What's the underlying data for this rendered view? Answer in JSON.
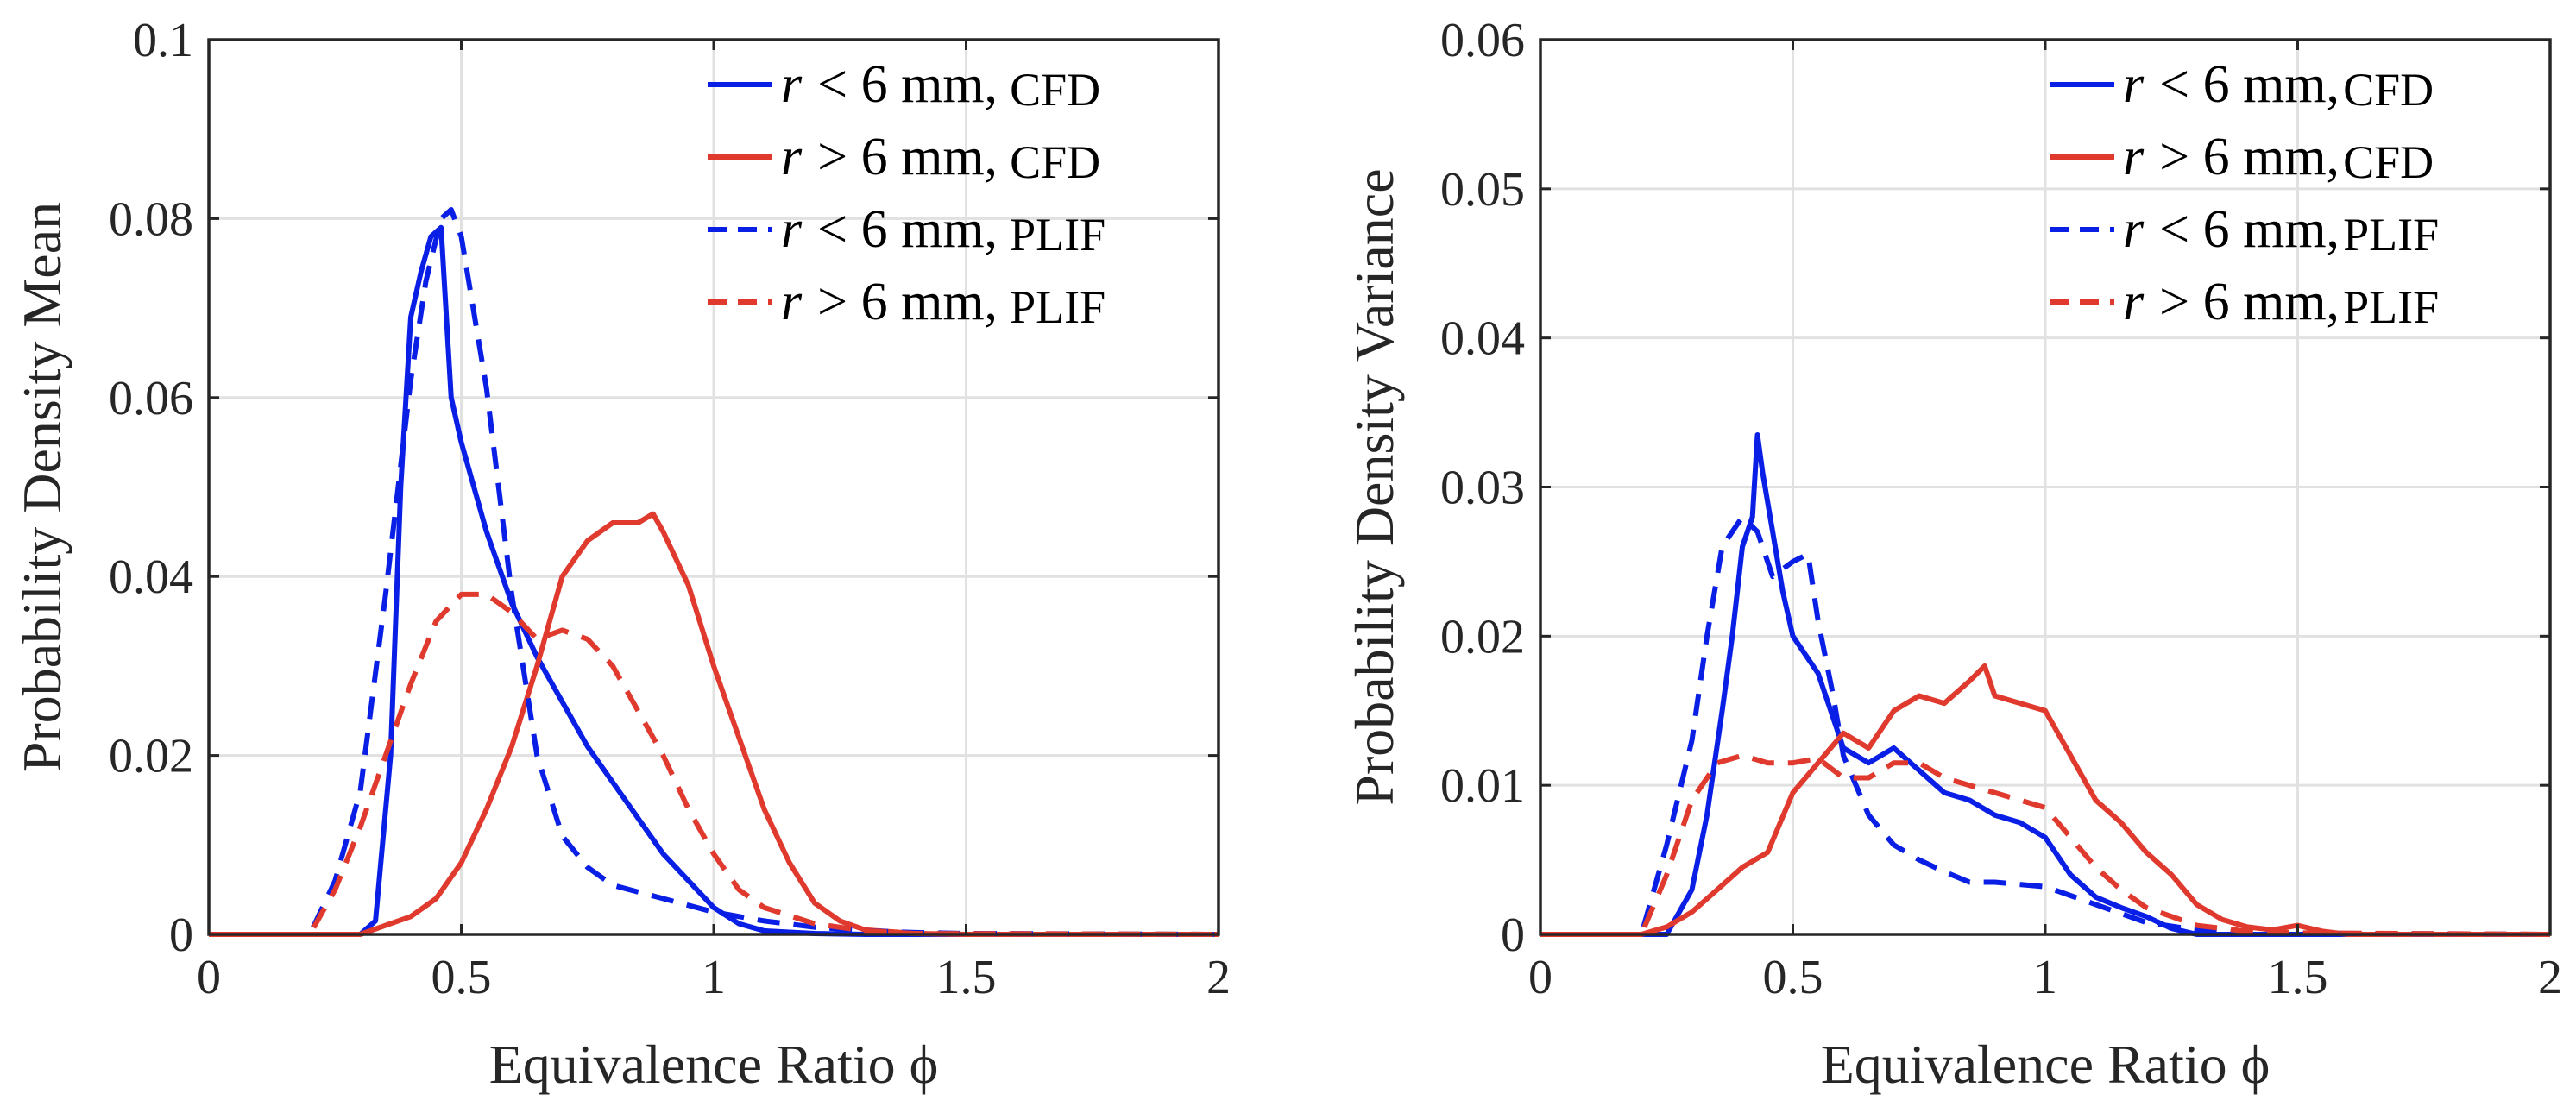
{
  "colors": {
    "blue": "#0a1fe6",
    "red": "#e03a2f"
  },
  "chart_data": [
    {
      "type": "line",
      "xlabel": "Equivalence Ratio ϕ",
      "ylabel": "Probability Density Mean",
      "xlim": [
        0,
        2
      ],
      "ylim": [
        0,
        0.1
      ],
      "xticks": [
        0,
        0.5,
        1,
        1.5,
        2
      ],
      "xtick_labels": [
        "0",
        "0.5",
        "1",
        "1.5",
        "2"
      ],
      "yticks": [
        0,
        0.02,
        0.04,
        0.06,
        0.08,
        0.1
      ],
      "ytick_labels": [
        "0",
        "0.02",
        "0.04",
        "0.06",
        "0.08",
        "0.1"
      ],
      "grid": true,
      "legend_position": "top-right",
      "series": [
        {
          "name": "r < 6 mm, CFD",
          "legend": {
            "var": "r",
            "op": "<",
            "rest": " 6 mm,",
            "source": "CFD"
          },
          "color": "blue",
          "dash": "solid",
          "x": [
            0,
            0.2,
            0.3,
            0.33,
            0.36,
            0.38,
            0.4,
            0.42,
            0.44,
            0.46,
            0.48,
            0.5,
            0.55,
            0.6,
            0.65,
            0.7,
            0.75,
            0.8,
            0.85,
            0.9,
            0.95,
            1.0,
            1.05,
            1.1,
            1.2,
            1.3,
            1.5,
            2.0
          ],
          "y": [
            0,
            0,
            0,
            0.0015,
            0.02,
            0.05,
            0.069,
            0.074,
            0.078,
            0.079,
            0.06,
            0.055,
            0.045,
            0.037,
            0.031,
            0.026,
            0.021,
            0.017,
            0.013,
            0.009,
            0.006,
            0.003,
            0.0012,
            0.0004,
            0.0001,
            0,
            0,
            0
          ]
        },
        {
          "name": "r > 6 mm, CFD",
          "legend": {
            "var": "r",
            "op": ">",
            "rest": " 6 mm,",
            "source": "CFD"
          },
          "color": "red",
          "dash": "solid",
          "x": [
            0,
            0.3,
            0.35,
            0.4,
            0.45,
            0.5,
            0.55,
            0.6,
            0.65,
            0.7,
            0.75,
            0.8,
            0.85,
            0.88,
            0.9,
            0.95,
            1.0,
            1.05,
            1.1,
            1.15,
            1.2,
            1.25,
            1.3,
            1.4,
            1.5,
            2.0
          ],
          "y": [
            0,
            0,
            0.001,
            0.002,
            0.004,
            0.008,
            0.014,
            0.021,
            0.03,
            0.04,
            0.044,
            0.046,
            0.046,
            0.047,
            0.045,
            0.039,
            0.03,
            0.022,
            0.014,
            0.008,
            0.0035,
            0.0015,
            0.0005,
            0.0001,
            0,
            0
          ]
        },
        {
          "name": "r < 6 mm, PLIF",
          "legend": {
            "var": "r",
            "op": "<",
            "rest": " 6 mm,",
            "source": "PLIF"
          },
          "color": "blue",
          "dash": "dashed",
          "x": [
            0,
            0.2,
            0.25,
            0.3,
            0.35,
            0.4,
            0.43,
            0.46,
            0.48,
            0.5,
            0.55,
            0.6,
            0.65,
            0.7,
            0.75,
            0.8,
            0.9,
            1.0,
            1.1,
            1.2,
            1.3,
            1.4,
            1.5,
            2.0
          ],
          "y": [
            0,
            0,
            0.006,
            0.016,
            0.038,
            0.062,
            0.073,
            0.08,
            0.081,
            0.078,
            0.061,
            0.038,
            0.02,
            0.011,
            0.0075,
            0.0055,
            0.004,
            0.0025,
            0.0015,
            0.0008,
            0.0004,
            0.0002,
            0.0001,
            0
          ]
        },
        {
          "name": "r > 6 mm, PLIF",
          "legend": {
            "var": "r",
            "op": ">",
            "rest": " 6 mm,",
            "source": "PLIF"
          },
          "color": "red",
          "dash": "dashed",
          "x": [
            0,
            0.2,
            0.25,
            0.3,
            0.35,
            0.4,
            0.45,
            0.5,
            0.55,
            0.6,
            0.65,
            0.7,
            0.75,
            0.8,
            0.85,
            0.9,
            0.95,
            1.0,
            1.05,
            1.1,
            1.2,
            1.3,
            1.4,
            2.0
          ],
          "y": [
            0,
            0,
            0.005,
            0.012,
            0.02,
            0.028,
            0.035,
            0.038,
            0.038,
            0.036,
            0.033,
            0.034,
            0.033,
            0.03,
            0.025,
            0.02,
            0.014,
            0.009,
            0.005,
            0.003,
            0.0012,
            0.0004,
            0.0001,
            0
          ]
        }
      ]
    },
    {
      "type": "line",
      "xlabel": "Equivalence Ratio ϕ",
      "ylabel": "Probability Density Variance",
      "xlim": [
        0,
        2
      ],
      "ylim": [
        0,
        0.06
      ],
      "xticks": [
        0,
        0.5,
        1,
        1.5,
        2
      ],
      "xtick_labels": [
        "0",
        "0.5",
        "1",
        "1.5",
        "2"
      ],
      "yticks": [
        0,
        0.01,
        0.02,
        0.03,
        0.04,
        0.05,
        0.06
      ],
      "ytick_labels": [
        "0",
        "0.01",
        "0.02",
        "0.03",
        "0.04",
        "0.05",
        "0.06"
      ],
      "grid": true,
      "legend_position": "top-right",
      "series": [
        {
          "name": "r < 6 mm,CFD",
          "legend": {
            "var": "r",
            "op": "<",
            "rest": " 6 mm,",
            "source": "CFD"
          },
          "color": "blue",
          "dash": "solid",
          "x": [
            0,
            0.25,
            0.3,
            0.33,
            0.36,
            0.38,
            0.4,
            0.42,
            0.43,
            0.44,
            0.46,
            0.48,
            0.5,
            0.52,
            0.55,
            0.58,
            0.6,
            0.65,
            0.7,
            0.75,
            0.8,
            0.85,
            0.9,
            0.95,
            1.0,
            1.05,
            1.1,
            1.15,
            1.2,
            1.25,
            1.3,
            2.0
          ],
          "y": [
            0,
            0,
            0.003,
            0.008,
            0.015,
            0.02,
            0.026,
            0.028,
            0.0335,
            0.031,
            0.027,
            0.023,
            0.02,
            0.019,
            0.0175,
            0.0145,
            0.0125,
            0.0115,
            0.0125,
            0.011,
            0.0095,
            0.009,
            0.008,
            0.0075,
            0.0065,
            0.004,
            0.0025,
            0.0018,
            0.0012,
            0.0004,
            0,
            0
          ]
        },
        {
          "name": "r > 6 mm,CFD",
          "legend": {
            "var": "r",
            "op": ">",
            "rest": " 6 mm,",
            "source": "CFD"
          },
          "color": "red",
          "dash": "solid",
          "x": [
            0,
            0.2,
            0.25,
            0.3,
            0.35,
            0.4,
            0.45,
            0.5,
            0.55,
            0.6,
            0.65,
            0.7,
            0.75,
            0.8,
            0.85,
            0.88,
            0.9,
            0.95,
            1.0,
            1.05,
            1.1,
            1.15,
            1.2,
            1.25,
            1.3,
            1.35,
            1.4,
            1.45,
            1.5,
            1.55,
            1.6,
            2.0
          ],
          "y": [
            0,
            0,
            0.0005,
            0.0015,
            0.003,
            0.0045,
            0.0055,
            0.0095,
            0.0115,
            0.0135,
            0.0125,
            0.015,
            0.016,
            0.0155,
            0.017,
            0.018,
            0.016,
            0.0155,
            0.015,
            0.012,
            0.009,
            0.0075,
            0.0055,
            0.004,
            0.002,
            0.001,
            0.0005,
            0.0003,
            0.0006,
            0.0002,
            0,
            0
          ]
        },
        {
          "name": "r < 6 mm,PLIF",
          "legend": {
            "var": "r",
            "op": "<",
            "rest": " 6 mm,",
            "source": "PLIF"
          },
          "color": "blue",
          "dash": "dashed",
          "x": [
            0,
            0.2,
            0.25,
            0.3,
            0.33,
            0.36,
            0.4,
            0.43,
            0.46,
            0.5,
            0.53,
            0.55,
            0.58,
            0.6,
            0.65,
            0.7,
            0.75,
            0.8,
            0.85,
            0.9,
            1.0,
            1.1,
            1.2,
            1.3,
            1.4,
            2.0
          ],
          "y": [
            0,
            0,
            0.006,
            0.013,
            0.02,
            0.026,
            0.028,
            0.027,
            0.024,
            0.025,
            0.0255,
            0.021,
            0.016,
            0.012,
            0.008,
            0.006,
            0.005,
            0.0042,
            0.0035,
            0.0035,
            0.0032,
            0.002,
            0.0008,
            0.0003,
            0.0001,
            0
          ]
        },
        {
          "name": "r > 6 mm,PLIF",
          "legend": {
            "var": "r",
            "op": ">",
            "rest": " 6 mm,",
            "source": "PLIF"
          },
          "color": "red",
          "dash": "dashed",
          "x": [
            0,
            0.2,
            0.25,
            0.3,
            0.35,
            0.4,
            0.45,
            0.5,
            0.55,
            0.6,
            0.65,
            0.7,
            0.75,
            0.8,
            0.85,
            0.9,
            0.95,
            1.0,
            1.05,
            1.1,
            1.15,
            1.2,
            1.3,
            1.4,
            1.5,
            2.0
          ],
          "y": [
            0,
            0,
            0.004,
            0.009,
            0.0115,
            0.012,
            0.0115,
            0.0115,
            0.0118,
            0.0105,
            0.0105,
            0.0115,
            0.0115,
            0.0105,
            0.01,
            0.0095,
            0.009,
            0.0085,
            0.0065,
            0.0045,
            0.003,
            0.0018,
            0.0006,
            0.0002,
            0.0001,
            0
          ]
        }
      ]
    }
  ]
}
